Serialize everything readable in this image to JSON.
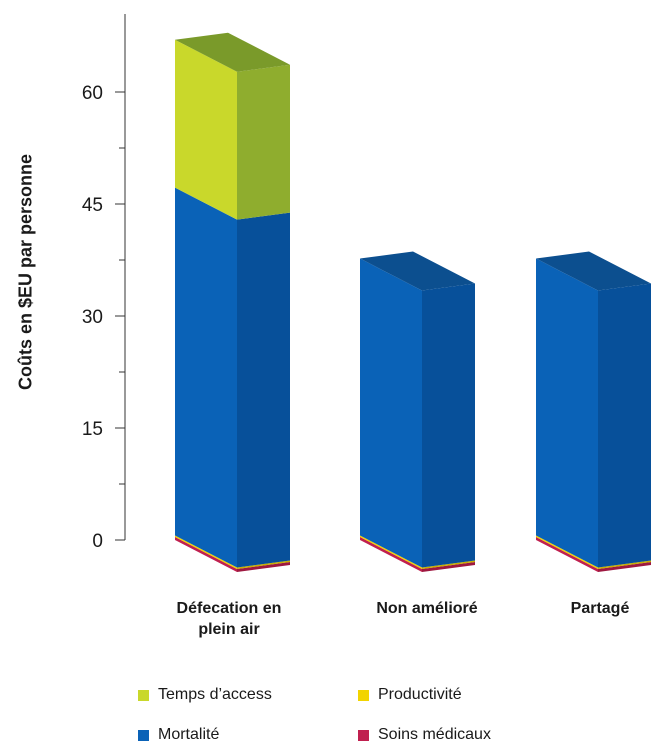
{
  "chart_data": {
    "type": "bar",
    "stacked": true,
    "three_d": true,
    "ylabel": "Coûts en $EU par personne",
    "xlabel": "",
    "ylim": [
      0,
      67
    ],
    "yticks": [
      0,
      15,
      30,
      45,
      60
    ],
    "grid": false,
    "legend_position": "bottom",
    "categories": [
      "Défecation en plein air",
      "Non amélioré",
      "Partagé"
    ],
    "category_lines": [
      [
        "Défecation en",
        "plein air"
      ],
      [
        "Non amélioré"
      ],
      [
        "Partagé"
      ]
    ],
    "series": [
      {
        "name": "Soins médicaux",
        "values": [
          0.4,
          0.4,
          0.4
        ],
        "color": "#c0204f",
        "side_color": "#9e1840",
        "top_color": "#d44a70"
      },
      {
        "name": "Productivité",
        "values": [
          0.2,
          0.2,
          0.2
        ],
        "color": "#f2d400",
        "side_color": "#c9b000",
        "top_color": "#f7e040"
      },
      {
        "name": "Mortalité",
        "values": [
          46.6,
          37.1,
          37.1
        ],
        "color": "#0a62b7",
        "side_color": "#07509a",
        "top_color": "#0c4f8f"
      },
      {
        "name": "Temps d’access",
        "values": [
          19.8,
          0,
          0
        ],
        "color": "#c9d82b",
        "side_color": "#8fad2e",
        "top_color": "#7a9a2a"
      }
    ],
    "legend": [
      {
        "label": "Temps d’access",
        "color": "#c9d82b"
      },
      {
        "label": "Productivité",
        "color": "#f2d400"
      },
      {
        "label": "Mortalité",
        "color": "#0a62b7"
      },
      {
        "label": "Soins médicaux",
        "color": "#c0204f"
      }
    ]
  }
}
